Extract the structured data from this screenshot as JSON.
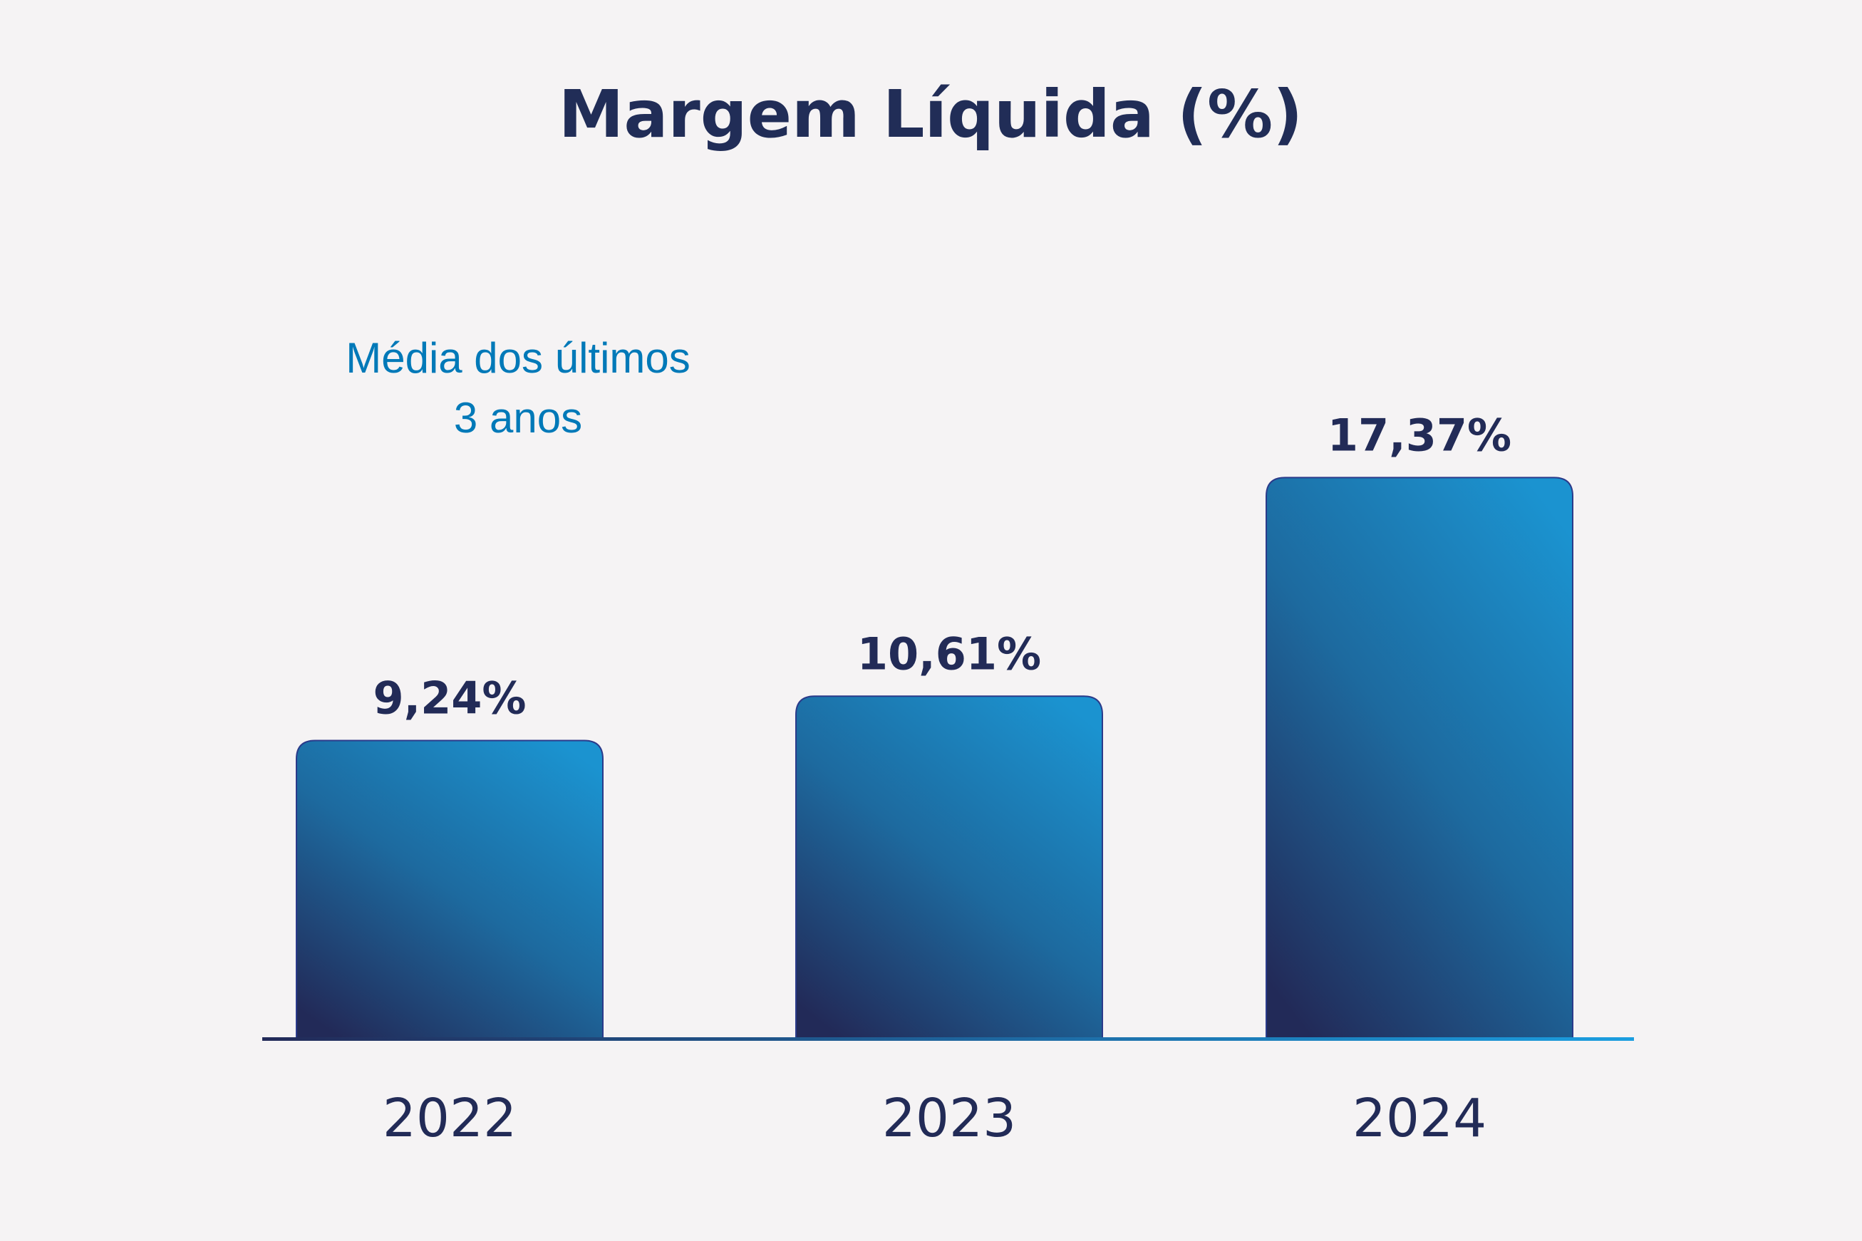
{
  "chart_data": {
    "type": "bar",
    "title": "Margem Líquida (%)",
    "annotation": [
      "Média dos últimos",
      "3 anos"
    ],
    "categories": [
      "2022",
      "2023",
      "2024"
    ],
    "values": [
      9.24,
      10.61,
      17.37
    ],
    "value_labels": [
      "9,24%",
      "10,61%",
      "17,37%"
    ],
    "xlabel": "",
    "ylabel": "",
    "ylim": [
      0,
      20
    ],
    "grid": false,
    "legend": "none",
    "colors": {
      "bar_dark": "#222a58",
      "bar_light": "#1b93d0",
      "text": "#212d57",
      "annotation": "#0079b8",
      "background": "#f5f3f4"
    }
  }
}
